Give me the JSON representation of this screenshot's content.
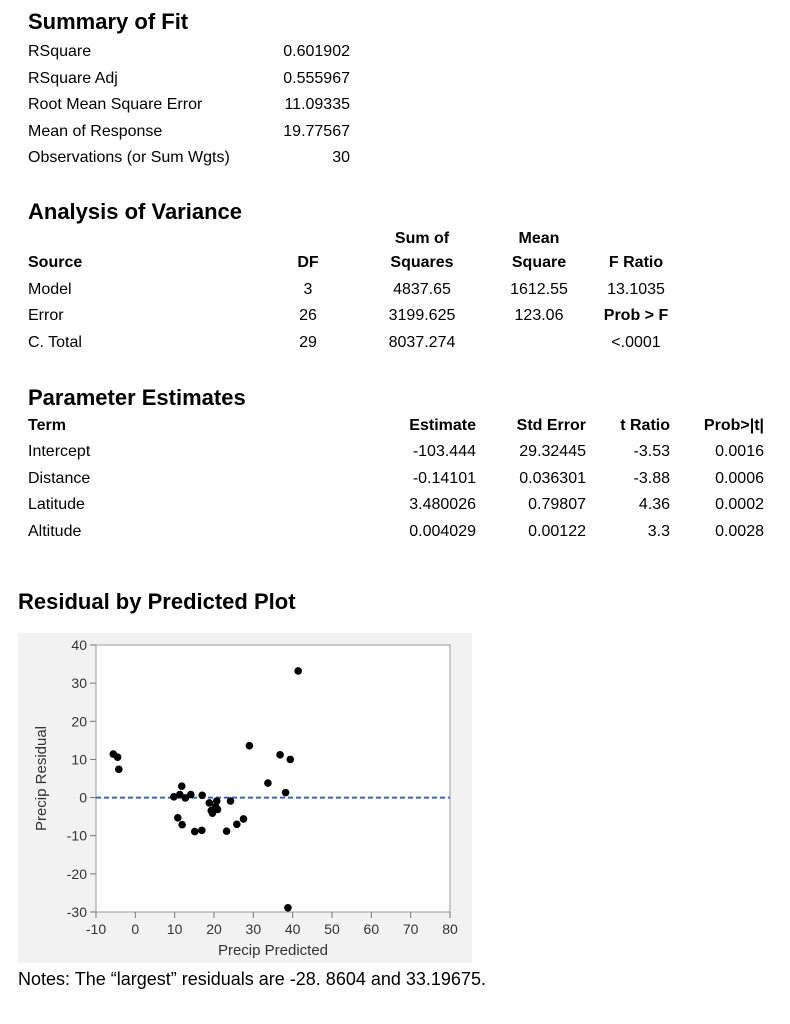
{
  "summary": {
    "title": "Summary of Fit",
    "rows": [
      {
        "label": "RSquare",
        "value": "0.601902"
      },
      {
        "label": "RSquare Adj",
        "value": "0.555967"
      },
      {
        "label": "Root Mean Square Error",
        "value": "11.09335"
      },
      {
        "label": "Mean of Response",
        "value": "19.77567"
      },
      {
        "label": "Observations (or Sum Wgts)",
        "value": "30"
      }
    ]
  },
  "anova": {
    "title": "Analysis of Variance",
    "headers": {
      "source": "Source",
      "df": "DF",
      "ss_top": "Sum of",
      "ss_bottom": "Squares",
      "ms_top": "Mean",
      "ms_bottom": "Square",
      "f": "F Ratio"
    },
    "rows": [
      {
        "source": "Model",
        "df": "3",
        "ss": "4837.65",
        "ms": "1612.55",
        "extra": "13.1035"
      },
      {
        "source": "Error",
        "df": "26",
        "ss": "3199.625",
        "ms": "123.06",
        "extra": "Prob > F"
      },
      {
        "source": "C. Total",
        "df": "29",
        "ss": "8037.274",
        "ms": "",
        "extra": "<.0001"
      }
    ]
  },
  "params": {
    "title": "Parameter Estimates",
    "headers": {
      "term": "Term",
      "estimate": "Estimate",
      "se": "Std Error",
      "t": "t Ratio",
      "p": "Prob>|t|"
    },
    "rows": [
      {
        "term": "Intercept",
        "estimate": "-103.444",
        "se": "29.32445",
        "t": "-3.53",
        "p": "0.0016"
      },
      {
        "term": "Distance",
        "estimate": "-0.14101",
        "se": "0.036301",
        "t": "-3.88",
        "p": "0.0006"
      },
      {
        "term": "Latitude",
        "estimate": "3.480026",
        "se": "0.79807",
        "t": "4.36",
        "p": "0.0002"
      },
      {
        "term": "Altitude",
        "estimate": "0.004029",
        "se": "0.00122",
        "t": "3.3",
        "p": "0.0028"
      }
    ]
  },
  "plot_title": "Residual by Predicted Plot",
  "notes": "Notes: The “largest” residuals are -28. 8604 and 33.19675.",
  "chart_data": {
    "type": "scatter",
    "title": "Residual by Predicted Plot",
    "xlabel": "Precip Predicted",
    "ylabel": "Precip Residual",
    "xlim": [
      -10,
      80
    ],
    "ylim": [
      -30,
      40
    ],
    "xticks": [
      -10,
      0,
      10,
      20,
      30,
      40,
      50,
      60,
      70,
      80
    ],
    "yticks": [
      -30,
      -20,
      -10,
      0,
      10,
      20,
      30,
      40
    ],
    "grid": false,
    "reference_line": {
      "y": 0,
      "style": "dashed",
      "color": "#3366cc"
    },
    "point_color": "#000000",
    "points": [
      {
        "x": -5.6,
        "y": 11.4
      },
      {
        "x": -4.5,
        "y": 10.6
      },
      {
        "x": -4.2,
        "y": 7.4
      },
      {
        "x": 9.8,
        "y": 0.2
      },
      {
        "x": 10.8,
        "y": -5.3
      },
      {
        "x": 11.3,
        "y": 0.8
      },
      {
        "x": 11.8,
        "y": 3.0
      },
      {
        "x": 11.9,
        "y": -7.1
      },
      {
        "x": 12.7,
        "y": -0.1
      },
      {
        "x": 14.1,
        "y": 0.8
      },
      {
        "x": 15.1,
        "y": -8.9
      },
      {
        "x": 16.9,
        "y": -8.6
      },
      {
        "x": 17.0,
        "y": 0.6
      },
      {
        "x": 18.8,
        "y": -1.4
      },
      {
        "x": 19.3,
        "y": -3.4
      },
      {
        "x": 19.6,
        "y": -4.1
      },
      {
        "x": 20.4,
        "y": -2.4
      },
      {
        "x": 20.7,
        "y": -0.9
      },
      {
        "x": 20.9,
        "y": -3.1
      },
      {
        "x": 23.2,
        "y": -8.8
      },
      {
        "x": 24.2,
        "y": -0.9
      },
      {
        "x": 25.8,
        "y": -7.0
      },
      {
        "x": 27.5,
        "y": -5.6
      },
      {
        "x": 29.0,
        "y": 13.6
      },
      {
        "x": 33.7,
        "y": 3.8
      },
      {
        "x": 36.8,
        "y": 11.2
      },
      {
        "x": 38.2,
        "y": 1.3
      },
      {
        "x": 39.4,
        "y": 10.0
      },
      {
        "x": 38.8,
        "y": -28.9
      },
      {
        "x": 41.4,
        "y": 33.2
      }
    ]
  }
}
